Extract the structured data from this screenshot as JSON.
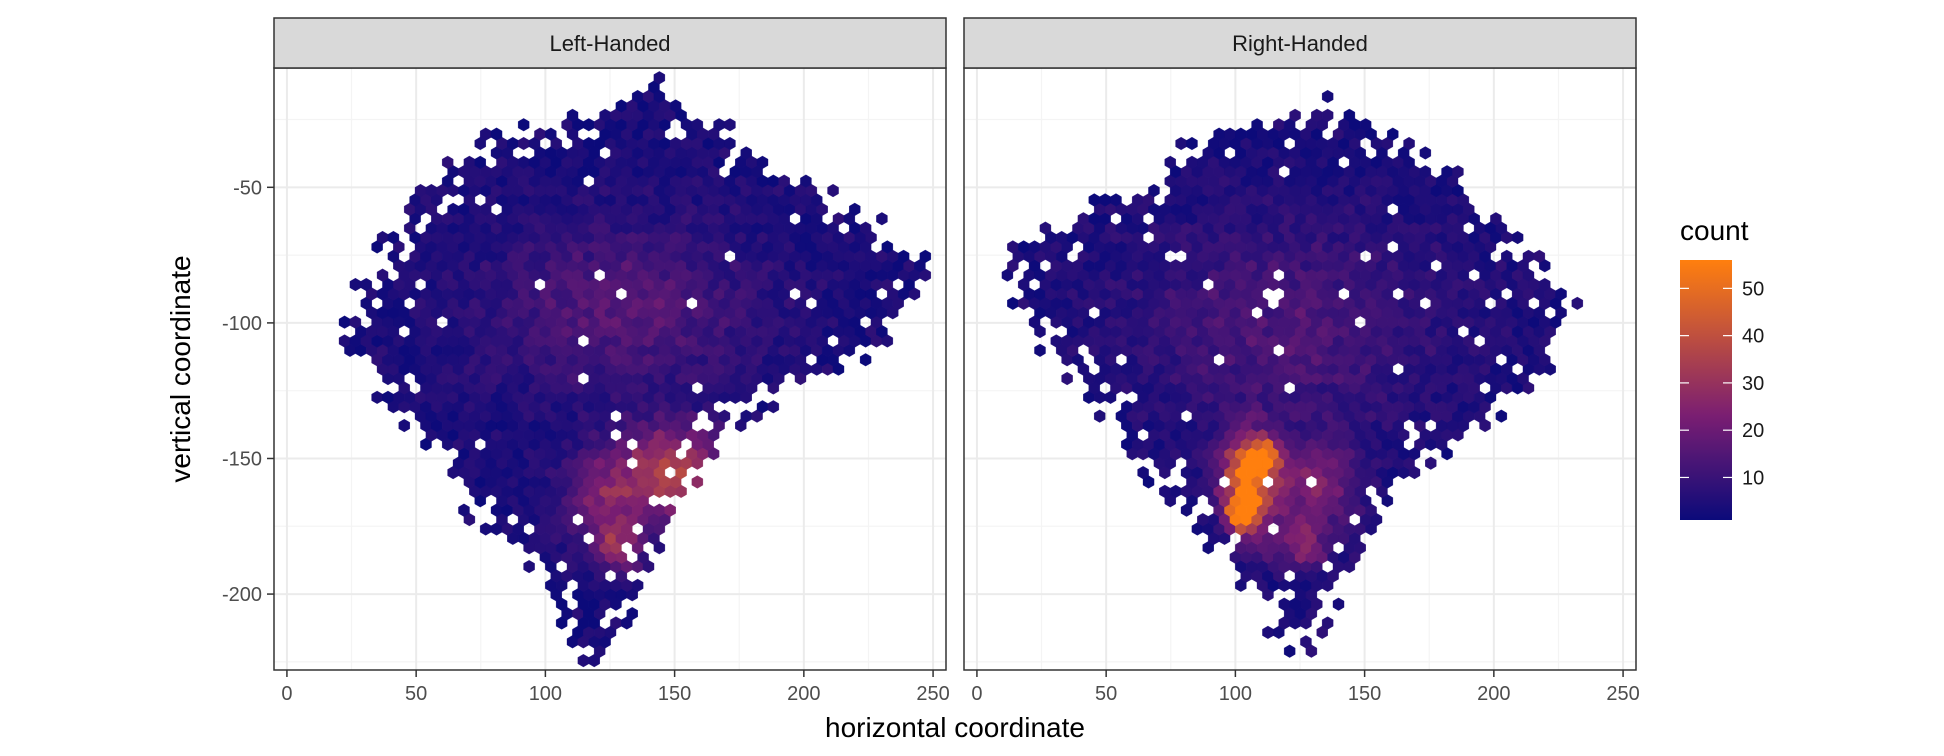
{
  "chart_data": {
    "type": "heatmap",
    "subtype": "hexbin",
    "xlabel": "horizontal coordinate",
    "ylabel": "vertical coordinate",
    "xlim": [
      -5,
      255
    ],
    "ylim": [
      -228,
      -6
    ],
    "x_ticks": [
      0,
      50,
      100,
      150,
      200,
      250
    ],
    "y_ticks": [
      -50,
      -100,
      -150,
      -200
    ],
    "grid": true,
    "colors": {
      "low": "#0b0a7a",
      "mid": "#7a1e72",
      "high": "#ff7f0e",
      "grid_major": "#ebebeb",
      "strip_fill": "#d9d9d9"
    },
    "legend": {
      "title": "count",
      "position": "right",
      "range": [
        1,
        56
      ],
      "breaks": [
        10,
        20,
        30,
        40,
        50
      ]
    },
    "panels": [
      {
        "label": "Left-Handed",
        "region": {
          "points": [
            [
              22,
              -100
            ],
            [
              42,
              -70
            ],
            [
              60,
              -45
            ],
            [
              90,
              -30
            ],
            [
              120,
              -25
            ],
            [
              140,
              -13
            ],
            [
              165,
              -30
            ],
            [
              200,
              -50
            ],
            [
              225,
              -65
            ],
            [
              245,
              -80
            ],
            [
              230,
              -105
            ],
            [
              200,
              -120
            ],
            [
              170,
              -135
            ],
            [
              150,
              -165
            ],
            [
              135,
              -190
            ],
            [
              125,
              -215
            ],
            [
              120,
              -225
            ],
            [
              110,
              -205
            ],
            [
              95,
              -185
            ],
            [
              75,
              -170
            ],
            [
              55,
              -140
            ],
            [
              35,
              -120
            ]
          ]
        },
        "hotspots": [
          {
            "x": 150,
            "y": -152,
            "peak": 28,
            "sx": 14,
            "sy": 10
          },
          {
            "x": 125,
            "y": -165,
            "peak": 20,
            "sx": 12,
            "sy": 12
          },
          {
            "x": 160,
            "y": -168,
            "peak": 24,
            "sx": 8,
            "sy": 6
          },
          {
            "x": 128,
            "y": -183,
            "peak": 22,
            "sx": 6,
            "sy": 6
          },
          {
            "x": 130,
            "y": -95,
            "peak": 12,
            "sx": 35,
            "sy": 20
          }
        ]
      },
      {
        "label": "Right-Handed",
        "region": {
          "points": [
            [
              12,
              -75
            ],
            [
              30,
              -70
            ],
            [
              55,
              -55
            ],
            [
              80,
              -40
            ],
            [
              100,
              -28
            ],
            [
              120,
              -25
            ],
            [
              135,
              -22
            ],
            [
              155,
              -30
            ],
            [
              185,
              -50
            ],
            [
              210,
              -75
            ],
            [
              228,
              -95
            ],
            [
              215,
              -120
            ],
            [
              195,
              -135
            ],
            [
              170,
              -150
            ],
            [
              150,
              -175
            ],
            [
              135,
              -200
            ],
            [
              128,
              -220
            ],
            [
              118,
              -212
            ],
            [
              105,
              -195
            ],
            [
              88,
              -175
            ],
            [
              65,
              -150
            ],
            [
              45,
              -125
            ],
            [
              25,
              -105
            ]
          ]
        },
        "hotspots": [
          {
            "x": 105,
            "y": -158,
            "peak": 48,
            "sx": 7,
            "sy": 12
          },
          {
            "x": 103,
            "y": -170,
            "peak": 55,
            "sx": 4,
            "sy": 4
          },
          {
            "x": 110,
            "y": -150,
            "peak": 45,
            "sx": 4,
            "sy": 4
          },
          {
            "x": 130,
            "y": -160,
            "peak": 20,
            "sx": 12,
            "sy": 12
          },
          {
            "x": 125,
            "y": -182,
            "peak": 18,
            "sx": 8,
            "sy": 6
          },
          {
            "x": 120,
            "y": -100,
            "peak": 10,
            "sx": 40,
            "sy": 25
          }
        ]
      }
    ]
  }
}
